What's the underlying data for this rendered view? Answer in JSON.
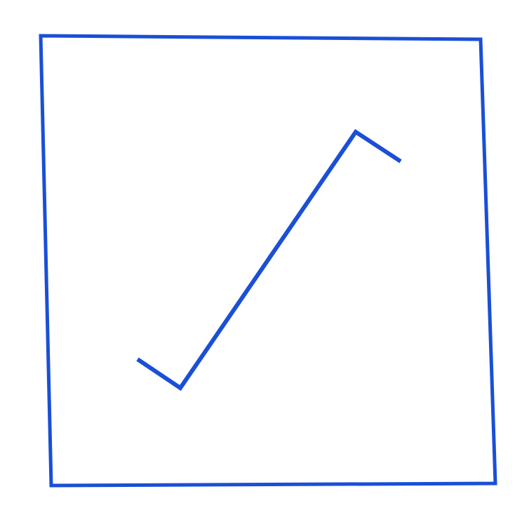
{
  "symbol": {
    "icon": "checkbox-checked-icon",
    "checked": true,
    "stroke_color": "#1a4fd6",
    "background_color": "#ffffff"
  }
}
